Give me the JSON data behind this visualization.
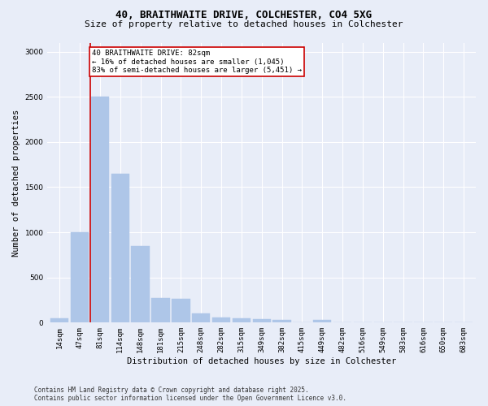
{
  "title_line1": "40, BRAITHWAITE DRIVE, COLCHESTER, CO4 5XG",
  "title_line2": "Size of property relative to detached houses in Colchester",
  "xlabel": "Distribution of detached houses by size in Colchester",
  "ylabel": "Number of detached properties",
  "categories": [
    "14sqm",
    "47sqm",
    "81sqm",
    "114sqm",
    "148sqm",
    "181sqm",
    "215sqm",
    "248sqm",
    "282sqm",
    "315sqm",
    "349sqm",
    "382sqm",
    "415sqm",
    "449sqm",
    "482sqm",
    "516sqm",
    "549sqm",
    "583sqm",
    "616sqm",
    "650sqm",
    "683sqm"
  ],
  "values": [
    50,
    1000,
    2500,
    1650,
    850,
    270,
    265,
    100,
    60,
    50,
    40,
    30,
    5,
    30,
    0,
    0,
    0,
    0,
    0,
    0,
    0
  ],
  "bar_color": "#aec6e8",
  "bar_edgecolor": "#aec6e8",
  "vline_x_index": 2,
  "vline_color": "#cc0000",
  "annotation_text": "40 BRAITHWAITE DRIVE: 82sqm\n← 16% of detached houses are smaller (1,045)\n83% of semi-detached houses are larger (5,451) →",
  "annotation_box_color": "#cc0000",
  "annotation_text_color": "#000000",
  "ylim": [
    0,
    3100
  ],
  "yticks": [
    0,
    500,
    1000,
    1500,
    2000,
    2500,
    3000
  ],
  "background_color": "#e8edf8",
  "grid_color": "#ffffff",
  "fig_facecolor": "#e8edf8",
  "footer_line1": "Contains HM Land Registry data © Crown copyright and database right 2025.",
  "footer_line2": "Contains public sector information licensed under the Open Government Licence v3.0.",
  "title_fontsize": 9,
  "subtitle_fontsize": 8,
  "tick_fontsize": 6.5,
  "ylabel_fontsize": 7.5,
  "xlabel_fontsize": 7.5,
  "annotation_fontsize": 6.5,
  "footer_fontsize": 5.5
}
